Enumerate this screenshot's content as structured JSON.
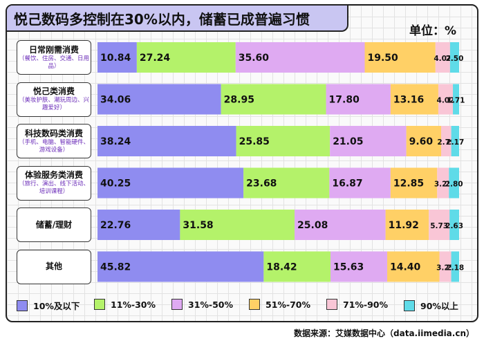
{
  "title": "悦己数码多控制在30%以内，储蓄已成普遍习惯",
  "unit": "单位：%",
  "source": "数据来源：艾媒数据中心（data.iimedia.cn）",
  "colors": [
    "#8f8cf0",
    "#b4f26a",
    "#dfaaf2",
    "#ffd066",
    "#f9c6d6",
    "#5fdbe8"
  ],
  "chart_data": {
    "type": "bar",
    "orientation": "horizontal",
    "stacked": true,
    "unit": "%",
    "xlim": [
      0,
      100
    ],
    "categories": [
      {
        "label": "日常刚需消费",
        "sub": "（餐饮、住房、交通、日用品）"
      },
      {
        "label": "悦己类消费",
        "sub": "（美妆护肤、潮玩周边、兴趣爱好）"
      },
      {
        "label": "科技数码类消费",
        "sub": "（手机、电脑、智能硬件、游戏设备）"
      },
      {
        "label": "体验服务类消费",
        "sub": "（旅行、演出、线下活动、培训课程）"
      },
      {
        "label": "储蓄/理财",
        "sub": ""
      },
      {
        "label": "其他",
        "sub": ""
      }
    ],
    "series": [
      {
        "name": "10%及以下",
        "values": [
          10.84,
          34.06,
          38.24,
          40.25,
          22.76,
          45.82
        ]
      },
      {
        "name": "11%-30%",
        "values": [
          27.24,
          28.95,
          25.85,
          23.68,
          31.58,
          18.42
        ]
      },
      {
        "name": "31%-50%",
        "values": [
          35.6,
          17.8,
          21.05,
          16.87,
          25.08,
          15.63
        ]
      },
      {
        "name": "51%-70%",
        "values": [
          19.5,
          13.16,
          9.6,
          12.85,
          11.92,
          14.4
        ]
      },
      {
        "name": "71%-90%",
        "values": [
          4.02,
          4.02,
          2.79,
          3.25,
          5.73,
          3.25
        ]
      },
      {
        "name": "90%以上",
        "values": [
          2.5,
          1.71,
          2.17,
          2.8,
          2.63,
          2.18
        ]
      }
    ],
    "legend_position": "bottom"
  }
}
